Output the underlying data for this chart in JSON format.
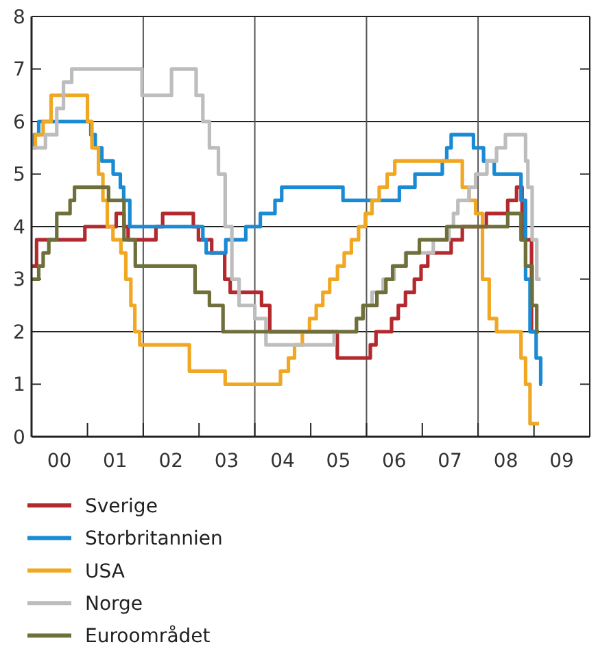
{
  "chart_data": {
    "type": "step",
    "xlim": [
      "2000-01-01",
      "2010-01-01"
    ],
    "ylim": [
      0,
      8
    ],
    "xticks": [
      {
        "value": "2000-07-01",
        "label": "00"
      },
      {
        "value": "2001-01-01",
        "label": null
      },
      {
        "value": "2001-07-01",
        "label": "01"
      },
      {
        "value": "2002-01-01",
        "label": null
      },
      {
        "value": "2002-07-01",
        "label": "02"
      },
      {
        "value": "2003-01-01",
        "label": null
      },
      {
        "value": "2003-07-01",
        "label": "03"
      },
      {
        "value": "2004-01-01",
        "label": null
      },
      {
        "value": "2004-07-01",
        "label": "04"
      },
      {
        "value": "2005-01-01",
        "label": null
      },
      {
        "value": "2005-07-01",
        "label": "05"
      },
      {
        "value": "2006-01-01",
        "label": null
      },
      {
        "value": "2006-07-01",
        "label": "06"
      },
      {
        "value": "2007-01-01",
        "label": null
      },
      {
        "value": "2007-07-01",
        "label": "07"
      },
      {
        "value": "2008-01-01",
        "label": null
      },
      {
        "value": "2008-07-01",
        "label": "08"
      },
      {
        "value": "2009-01-01",
        "label": null
      },
      {
        "value": "2009-07-01",
        "label": "09"
      }
    ],
    "yticks": [
      0,
      1,
      2,
      3,
      4,
      5,
      6,
      7,
      8
    ],
    "grid": true,
    "legend": "bottom",
    "line_style": "solid",
    "marker": "none",
    "series": [
      {
        "name": "Sverige",
        "color": "#b22a2e",
        "x": [
          "2000-01-01",
          "2000-02-03",
          "2000-12-15",
          "2001-07-08",
          "2001-08-28",
          "2001-09-24",
          "2002-03-25",
          "2002-05-08",
          "2002-11-25",
          "2002-12-28",
          "2003-03-25",
          "2003-06-18",
          "2003-07-24",
          "2004-02-14",
          "2004-04-08",
          "2005-06-24",
          "2006-01-26",
          "2006-03-04",
          "2006-06-14",
          "2006-07-28",
          "2006-09-13",
          "2006-11-10",
          "2006-12-24",
          "2007-02-06",
          "2007-07-09",
          "2007-09-20",
          "2008-02-24",
          "2008-07-13",
          "2008-09-09",
          "2008-10-15",
          "2008-12-16",
          "2009-01-26"
        ],
        "values": [
          3.25,
          3.75,
          4.0,
          4.25,
          4.0,
          3.75,
          4.0,
          4.25,
          4.0,
          3.75,
          3.5,
          3.0,
          2.75,
          2.5,
          2.0,
          1.5,
          1.75,
          2.0,
          2.25,
          2.5,
          2.75,
          3.0,
          3.25,
          3.5,
          3.75,
          4.0,
          4.25,
          4.5,
          4.75,
          3.75,
          2.0,
          2.0
        ]
      },
      {
        "name": "Storbritannien",
        "color": "#1a8ad4",
        "x": [
          "2000-01-01",
          "2000-01-19",
          "2000-02-17",
          "2001-01-23",
          "2001-02-21",
          "2001-04-05",
          "2001-06-18",
          "2001-08-04",
          "2001-08-26",
          "2001-10-05",
          "2003-01-26",
          "2003-02-17",
          "2003-06-25",
          "2003-11-03",
          "2004-02-06",
          "2004-05-12",
          "2004-06-25",
          "2005-07-31",
          "2006-08-04",
          "2006-11-14",
          "2007-05-12",
          "2007-06-10",
          "2007-07-09",
          "2007-12-02",
          "2008-02-06",
          "2008-04-16",
          "2008-10-08",
          "2008-11-07",
          "2008-12-06",
          "2009-01-15",
          "2009-02-14",
          "2009-02-21"
        ],
        "values": [
          5.5,
          5.75,
          6.0,
          5.75,
          5.5,
          5.25,
          5.0,
          4.75,
          4.5,
          4.0,
          3.75,
          3.5,
          3.75,
          4.0,
          4.25,
          4.5,
          4.75,
          4.5,
          4.75,
          5.0,
          5.25,
          5.5,
          5.75,
          5.5,
          5.25,
          5.0,
          4.5,
          3.0,
          2.0,
          1.5,
          1.0,
          1.0
        ]
      },
      {
        "name": "USA",
        "color": "#f0a823",
        "x": [
          "2000-01-01",
          "2000-01-26",
          "2000-03-17",
          "2000-05-08",
          "2001-01-01",
          "2001-01-30",
          "2001-03-14",
          "2001-04-12",
          "2001-05-11",
          "2001-06-17",
          "2001-08-08",
          "2001-09-09",
          "2001-10-12",
          "2001-11-07",
          "2001-12-09",
          "2002-10-30",
          "2003-06-21",
          "2004-06-17",
          "2004-08-08",
          "2004-09-17",
          "2004-11-07",
          "2004-12-24",
          "2005-02-06",
          "2005-03-21",
          "2005-05-05",
          "2005-06-25",
          "2005-08-08",
          "2005-09-24",
          "2005-11-10",
          "2005-12-24",
          "2006-02-06",
          "2006-03-25",
          "2006-05-16",
          "2006-07-05",
          "2007-09-20",
          "2007-11-03",
          "2007-12-16",
          "2008-01-30",
          "2008-03-14",
          "2008-05-01",
          "2008-10-08",
          "2008-11-07",
          "2008-12-06",
          "2009-01-05",
          "2009-02-03"
        ],
        "values": [
          5.5,
          5.75,
          6.0,
          6.5,
          6.0,
          5.5,
          5.0,
          4.5,
          4.0,
          3.75,
          3.5,
          3.0,
          2.5,
          2.0,
          1.75,
          1.25,
          1.0,
          1.25,
          1.5,
          1.75,
          2.0,
          2.25,
          2.5,
          2.75,
          3.0,
          3.25,
          3.5,
          3.75,
          4.0,
          4.25,
          4.5,
          4.75,
          5.0,
          5.25,
          4.75,
          4.5,
          4.25,
          3.0,
          2.25,
          2.0,
          1.5,
          1.0,
          0.25,
          0.25,
          0.25
        ]
      },
      {
        "name": "Norge",
        "color": "#bdbdbd",
        "x": [
          "2000-01-01",
          "2000-04-01",
          "2000-06-14",
          "2000-07-28",
          "2000-09-20",
          "2001-12-24",
          "2002-07-05",
          "2002-12-13",
          "2003-01-26",
          "2003-03-10",
          "2003-05-08",
          "2003-06-21",
          "2003-08-04",
          "2003-09-20",
          "2004-01-01",
          "2004-03-14",
          "2005-06-03",
          "2005-10-27",
          "2005-12-09",
          "2006-02-06",
          "2006-04-20",
          "2006-07-01",
          "2006-09-13",
          "2006-12-13",
          "2007-03-14",
          "2007-06-25",
          "2007-07-24",
          "2007-08-22",
          "2007-11-03",
          "2007-12-16",
          "2008-02-28",
          "2008-05-01",
          "2008-06-28",
          "2008-11-07",
          "2008-11-22",
          "2008-12-20",
          "2009-01-19",
          "2009-02-14"
        ],
        "values": [
          5.5,
          5.75,
          6.25,
          6.75,
          7.0,
          6.5,
          7.0,
          6.5,
          6.0,
          5.5,
          5.0,
          4.0,
          3.0,
          2.5,
          2.25,
          1.75,
          2.0,
          2.25,
          2.5,
          2.75,
          3.0,
          3.25,
          3.5,
          3.5,
          3.75,
          4.0,
          4.25,
          4.5,
          4.75,
          5.0,
          5.25,
          5.5,
          5.75,
          5.25,
          4.75,
          3.75,
          3.0,
          3.0
        ]
      },
      {
        "name": "Euroområdet",
        "color": "#6f6f3a",
        "x": [
          "2000-01-01",
          "2000-02-17",
          "2000-03-17",
          "2000-04-23",
          "2000-06-14",
          "2000-09-09",
          "2000-10-08",
          "2001-05-19",
          "2001-08-28",
          "2001-11-10",
          "2002-12-06",
          "2003-03-10",
          "2003-06-07",
          "2005-10-27",
          "2005-12-09",
          "2006-03-10",
          "2006-05-08",
          "2006-06-21",
          "2006-09-17",
          "2006-12-13",
          "2007-06-10",
          "2008-07-13",
          "2008-10-08",
          "2008-11-07",
          "2008-12-20",
          "2009-01-19",
          "2009-02-03"
        ],
        "values": [
          3.0,
          3.25,
          3.5,
          3.75,
          4.25,
          4.5,
          4.75,
          4.5,
          3.75,
          3.25,
          2.75,
          2.5,
          2.0,
          2.25,
          2.5,
          2.75,
          3.0,
          3.25,
          3.5,
          3.75,
          4.0,
          4.25,
          3.75,
          3.25,
          2.5,
          2.0,
          2.0
        ]
      }
    ]
  }
}
